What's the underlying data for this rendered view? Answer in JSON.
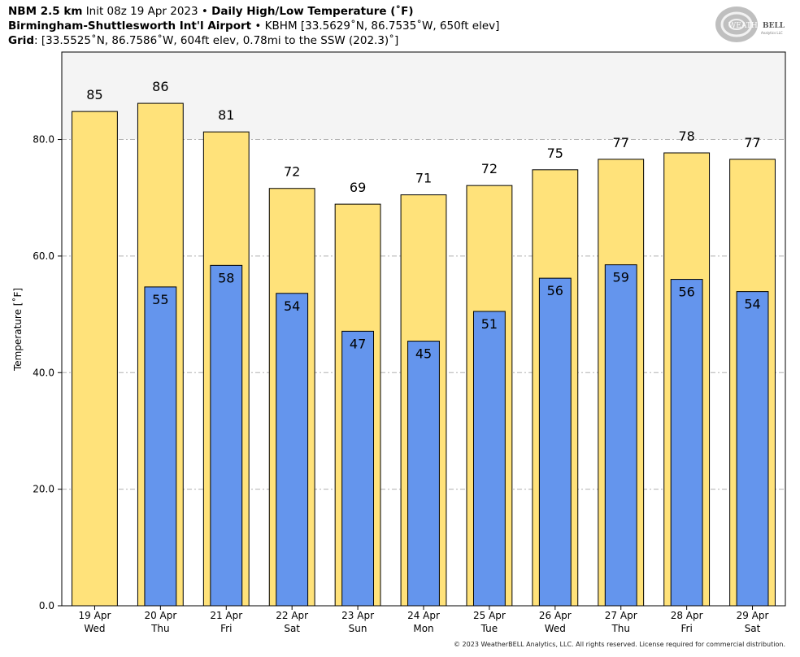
{
  "header": {
    "model": "NBM 2.5 km",
    "init": "Init 08z 19 Apr 2023",
    "bullet": "•",
    "product": "Daily High/Low Temperature (˚F)",
    "station_name": "Birmingham-Shuttlesworth Int'l Airport",
    "station_info": "KBHM [33.5629˚N, 86.7535˚W, 650ft elev]",
    "grid_label": "Grid",
    "grid_info": ": [33.5525˚N, 86.7586˚W, 604ft elev, 0.78mi to the SSW (202.3)˚]"
  },
  "logo": {
    "text_main": "WEATHER",
    "text_bold": "BELL",
    "text_sub": "Analytics LLC"
  },
  "copyright": "© 2023 WeatherBELL Analytics, LLC. All rights reserved. License required for commercial distribution.",
  "colors": {
    "high_bar": "#ffe27a",
    "low_bar": "#6495ed",
    "plot_bg_upper": "#f4f4f4",
    "grid": "#b0b0b0"
  },
  "chart_data": {
    "type": "bar",
    "title": "Daily High/Low Temperature (˚F)",
    "ylabel": "Temperature [˚F]",
    "xlabel": "",
    "ylim": [
      0,
      95
    ],
    "yticks": [
      "0.0",
      "20.0",
      "40.0",
      "60.0",
      "80.0"
    ],
    "ytick_values": [
      0,
      20,
      40,
      60,
      80
    ],
    "grid": true,
    "categories": [
      {
        "date": "19 Apr",
        "day": "Wed"
      },
      {
        "date": "20 Apr",
        "day": "Thu"
      },
      {
        "date": "21 Apr",
        "day": "Fri"
      },
      {
        "date": "22 Apr",
        "day": "Sat"
      },
      {
        "date": "23 Apr",
        "day": "Sun"
      },
      {
        "date": "24 Apr",
        "day": "Mon"
      },
      {
        "date": "25 Apr",
        "day": "Tue"
      },
      {
        "date": "26 Apr",
        "day": "Wed"
      },
      {
        "date": "27 Apr",
        "day": "Thu"
      },
      {
        "date": "28 Apr",
        "day": "Fri"
      },
      {
        "date": "29 Apr",
        "day": "Sat"
      }
    ],
    "series": [
      {
        "key": "high",
        "values": [
          85,
          86,
          81,
          72,
          69,
          71,
          72,
          75,
          77,
          78,
          77
        ],
        "bar_values": [
          84.8,
          86.2,
          81.3,
          71.6,
          68.9,
          70.5,
          72.1,
          74.8,
          76.6,
          77.7,
          76.6
        ]
      },
      {
        "key": "low",
        "values": [
          null,
          55,
          58,
          54,
          47,
          45,
          51,
          56,
          59,
          56,
          54
        ],
        "bar_values": [
          null,
          54.7,
          58.4,
          53.6,
          47.1,
          45.4,
          50.5,
          56.2,
          58.5,
          56.0,
          53.9
        ]
      }
    ]
  }
}
